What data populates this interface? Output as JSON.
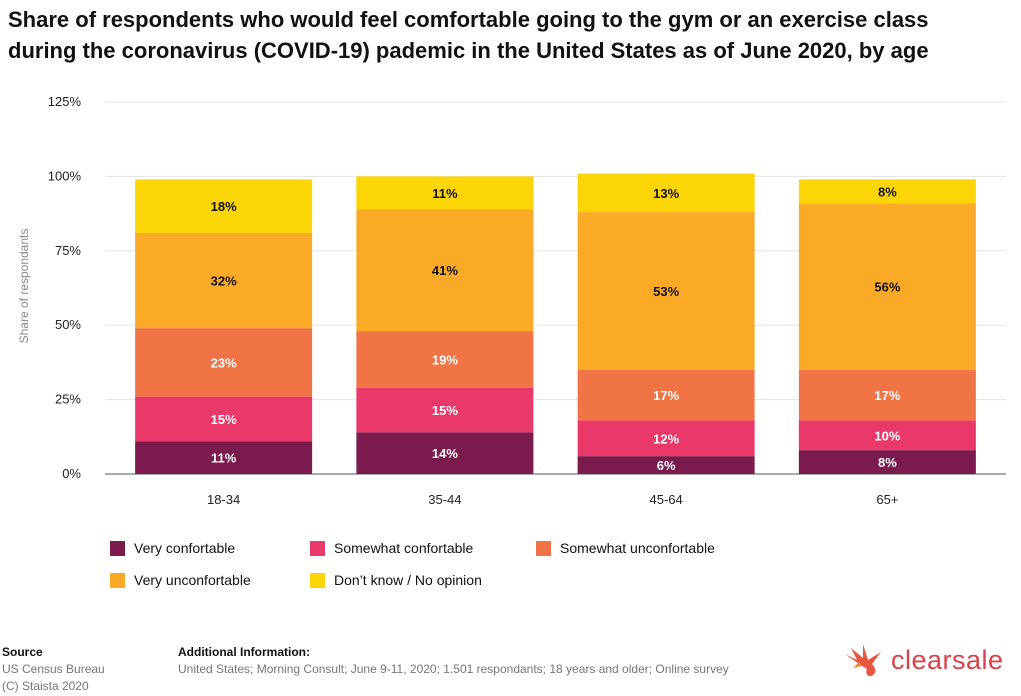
{
  "chart_data": {
    "type": "bar",
    "stacked": true,
    "title": "Share of respondents who would feel comfortable going to the gym or an exercise class\nduring the coronavirus (COVID-19) pademic in the United States as of June 2020, by age",
    "xlabel": "",
    "ylabel": "Share of respondants",
    "ylim": [
      0,
      125
    ],
    "yticks": [
      "0%",
      "25%",
      "50%",
      "75%",
      "100%",
      "125%"
    ],
    "ytick_values": [
      0,
      25,
      50,
      75,
      100,
      125
    ],
    "grid": true,
    "legend_position": "bottom",
    "categories": [
      "18-34",
      "35-44",
      "45-64",
      "65+"
    ],
    "series": [
      {
        "name": "Very confortable",
        "color": "#7a1a4d",
        "label_color": "#ffffff",
        "values": [
          11,
          14,
          6,
          8
        ]
      },
      {
        "name": "Somewhat confortable",
        "color": "#e8396a",
        "label_color": "#ffffff",
        "values": [
          15,
          15,
          12,
          10
        ]
      },
      {
        "name": "Somewhat unconfortable",
        "color": "#f07445",
        "label_color": "#ffffff",
        "values": [
          23,
          19,
          17,
          17
        ]
      },
      {
        "name": "Very unconfortable",
        "color": "#fbaa28",
        "label_color": "#111111",
        "values": [
          32,
          41,
          53,
          56
        ]
      },
      {
        "name": "Don’t know / No opinion",
        "color": "#fbd506",
        "label_color": "#111111",
        "values": [
          18,
          11,
          13,
          8
        ]
      }
    ]
  },
  "footer": {
    "source_heading": "Source",
    "source_lines": [
      "US Census Bureau",
      "(C) Staista 2020"
    ],
    "info_heading": "Additional Information:",
    "info_text": "United States; Morning Consult; June 9-11, 2020; 1.501 respondants; 18 years and older; Online survey"
  },
  "brand": {
    "name": "clearsale",
    "logo_icon": "bird-logo-icon",
    "color": "#d9424a"
  }
}
